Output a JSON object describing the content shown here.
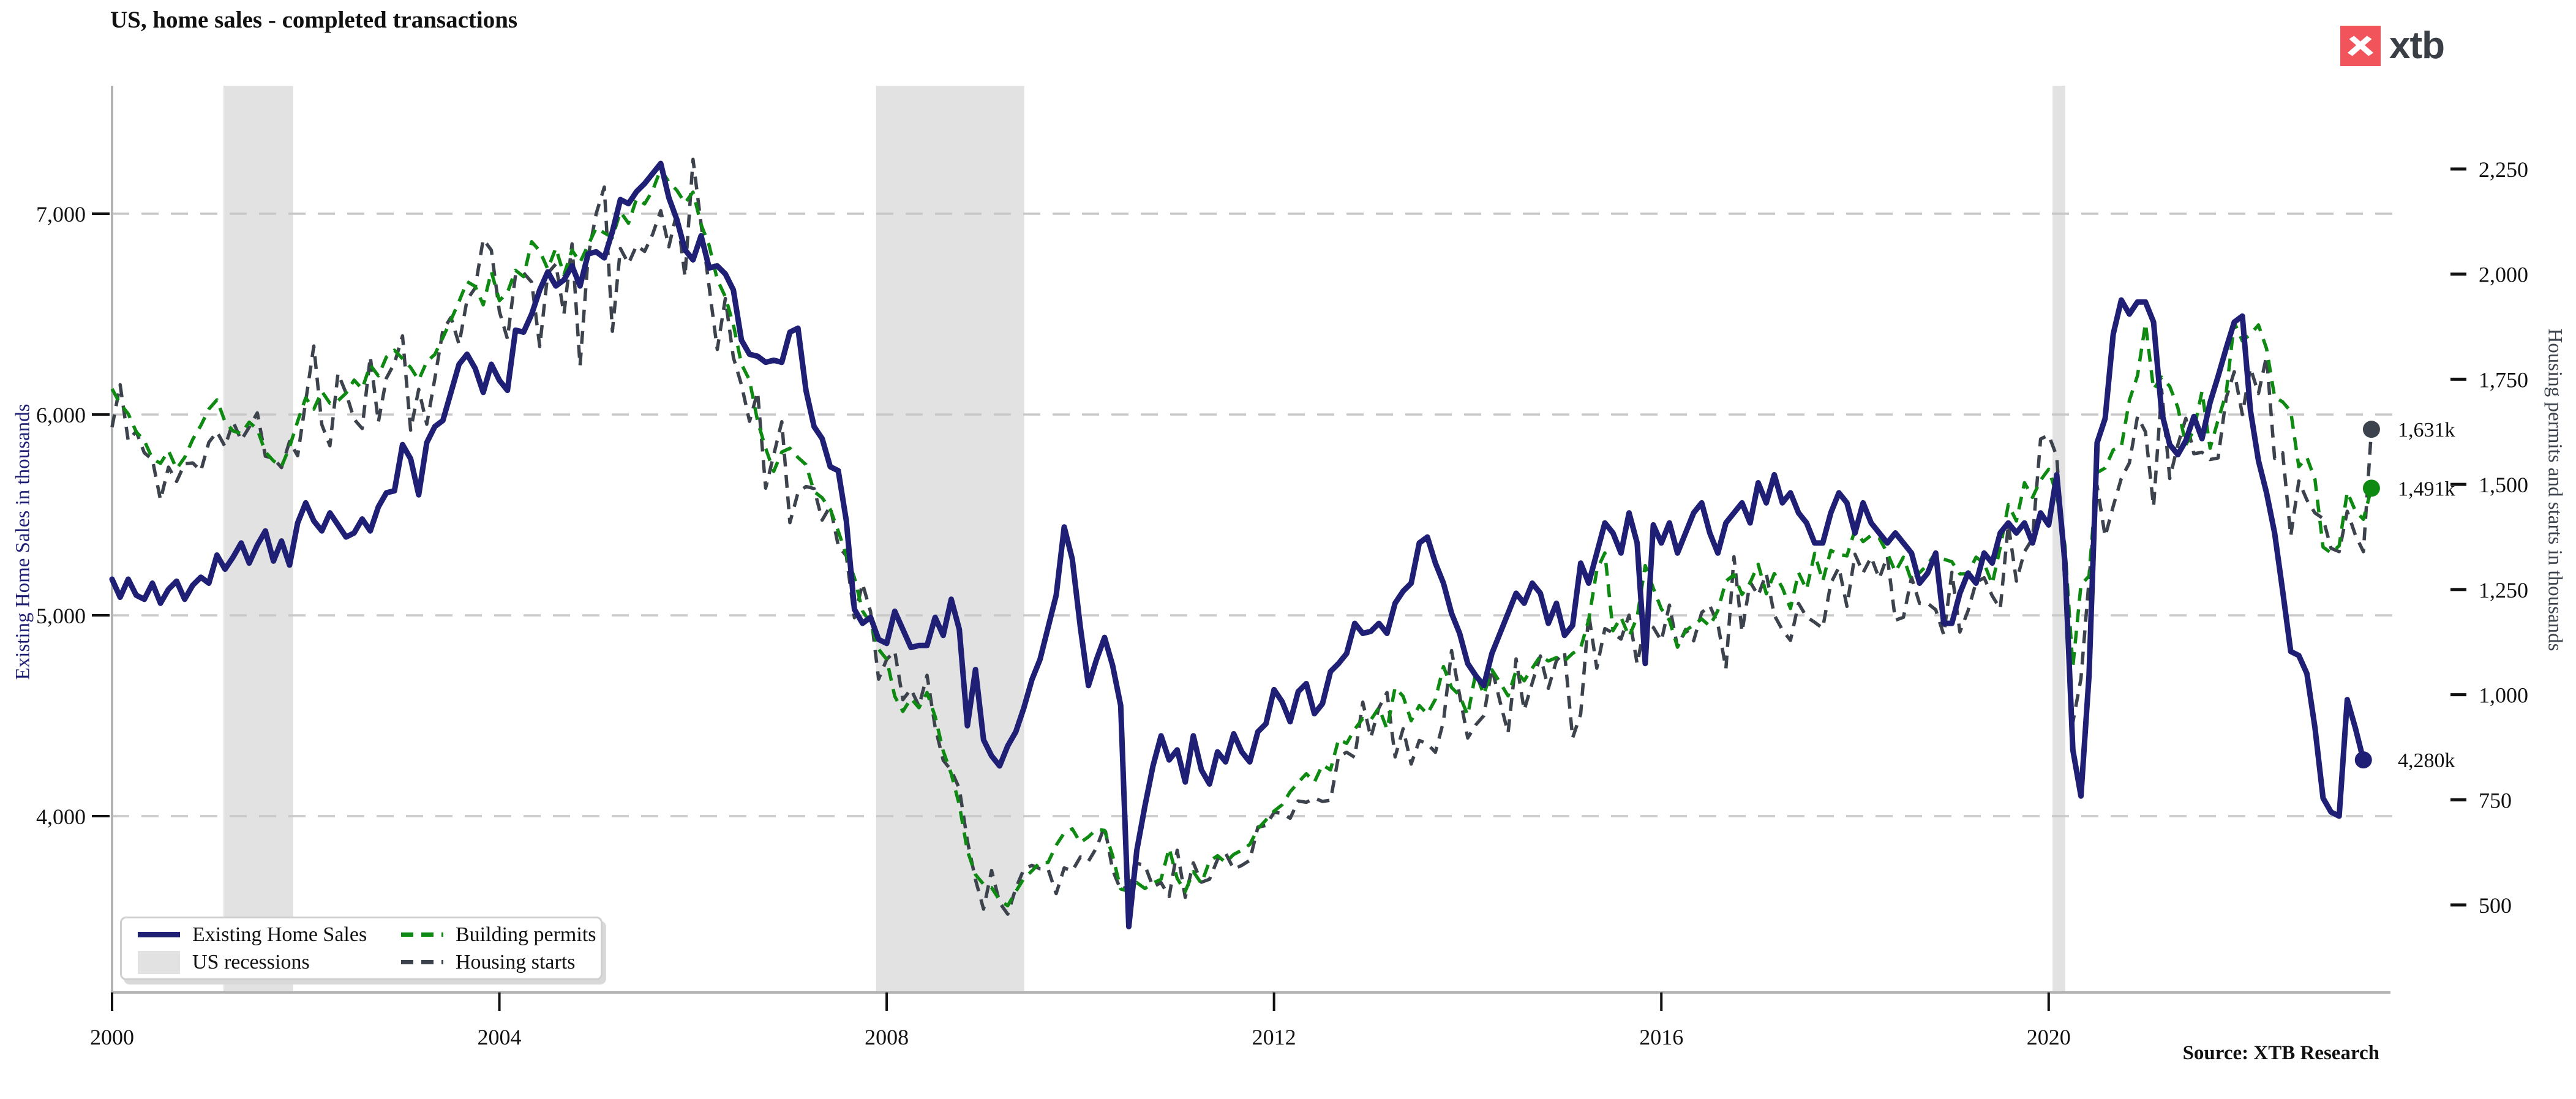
{
  "header": {
    "title": "US, home sales - completed transactions",
    "logo_text": "xtb"
  },
  "footer": {
    "source": "Source: XTB Research"
  },
  "legend": {
    "items": [
      {
        "label": "Existing Home Sales",
        "style": "solid-line",
        "color": "#1e1f75"
      },
      {
        "label": "US recessions",
        "style": "patch",
        "color": "#e2e2e2"
      },
      {
        "label": "Building permits",
        "style": "dashed-line",
        "color": "#0e8a12"
      },
      {
        "label": "Housing starts",
        "style": "dashed-line",
        "color": "#3d434d"
      }
    ]
  },
  "chart_data": {
    "type": "line",
    "title": "US, home sales - completed transactions",
    "x": {
      "start_year": 2000,
      "interval_months": 1,
      "tick_years": [
        2000,
        2004,
        2008,
        2012,
        2016,
        2020
      ]
    },
    "y_left": {
      "label": "Existing Home Sales in thousands",
      "ticks": [
        4000,
        5000,
        6000,
        7000
      ],
      "range_top_value": 7637,
      "range_bottom_value": 3122,
      "color": "#1e1f75"
    },
    "y_right": {
      "label": "Housing permits and starts in thousands",
      "ticks": [
        500,
        750,
        1000,
        1250,
        1500,
        1750,
        2000,
        2250
      ],
      "color": "#3d434d"
    },
    "grid": "horizontal-dashed",
    "colors": {
      "recession_band": "#e2e2e2",
      "gridline": "#c8c8c8",
      "spine": "#b3b3b3",
      "tick_text": "#111111",
      "logo_red": "#f2545b",
      "logo_gray": "#3a3e45"
    },
    "recessions": [
      {
        "start": 2001.15,
        "end": 2001.87
      },
      {
        "start": 2007.89,
        "end": 2009.42
      },
      {
        "start": 2020.04,
        "end": 2020.17
      }
    ],
    "series": [
      {
        "name": "Existing Home Sales",
        "axis": "left",
        "color": "#1e1f75",
        "style": "solid",
        "values": [
          5180,
          5090,
          5180,
          5100,
          5080,
          5160,
          5060,
          5130,
          5170,
          5080,
          5150,
          5190,
          5160,
          5300,
          5230,
          5290,
          5360,
          5260,
          5350,
          5420,
          5270,
          5370,
          5250,
          5460,
          5560,
          5470,
          5420,
          5510,
          5450,
          5390,
          5410,
          5480,
          5420,
          5540,
          5610,
          5620,
          5850,
          5780,
          5600,
          5860,
          5940,
          5970,
          6110,
          6250,
          6300,
          6230,
          6110,
          6250,
          6170,
          6120,
          6420,
          6410,
          6500,
          6620,
          6710,
          6640,
          6670,
          6740,
          6640,
          6800,
          6810,
          6780,
          6910,
          7070,
          7050,
          7110,
          7150,
          7200,
          7250,
          7080,
          6970,
          6820,
          6770,
          6890,
          6730,
          6740,
          6700,
          6620,
          6370,
          6300,
          6290,
          6260,
          6270,
          6260,
          6410,
          6430,
          6120,
          5940,
          5880,
          5740,
          5720,
          5470,
          5030,
          4960,
          4990,
          4880,
          4860,
          5020,
          4930,
          4840,
          4850,
          4850,
          4990,
          4900,
          5080,
          4930,
          4450,
          4730,
          4380,
          4300,
          4250,
          4350,
          4420,
          4540,
          4680,
          4780,
          4940,
          5100,
          5440,
          5280,
          4940,
          4650,
          4780,
          4890,
          4750,
          4550,
          3450,
          3830,
          4050,
          4250,
          4400,
          4280,
          4330,
          4170,
          4400,
          4230,
          4160,
          4320,
          4270,
          4410,
          4320,
          4270,
          4420,
          4460,
          4630,
          4570,
          4470,
          4620,
          4660,
          4510,
          4560,
          4720,
          4760,
          4810,
          4960,
          4910,
          4920,
          4960,
          4910,
          5060,
          5120,
          5160,
          5360,
          5390,
          5260,
          5160,
          5010,
          4910,
          4760,
          4700,
          4650,
          4810,
          4910,
          5010,
          5110,
          5060,
          5160,
          5110,
          4960,
          5060,
          4900,
          4950,
          5260,
          5160,
          5310,
          5460,
          5410,
          5310,
          5510,
          5360,
          4760,
          5450,
          5360,
          5460,
          5310,
          5410,
          5510,
          5560,
          5410,
          5310,
          5460,
          5510,
          5560,
          5460,
          5660,
          5560,
          5700,
          5560,
          5610,
          5510,
          5460,
          5360,
          5360,
          5510,
          5610,
          5560,
          5410,
          5560,
          5460,
          5410,
          5360,
          5410,
          5360,
          5310,
          5160,
          5210,
          5310,
          4960,
          4960,
          5110,
          5210,
          5160,
          5310,
          5260,
          5410,
          5460,
          5410,
          5460,
          5360,
          5510,
          5450,
          5700,
          5270,
          4330,
          4100,
          4700,
          5860,
          5980,
          6400,
          6570,
          6500,
          6560,
          6560,
          6460,
          6010,
          5850,
          5800,
          5870,
          5990,
          5880,
          6060,
          6190,
          6330,
          6460,
          6490,
          6020,
          5770,
          5610,
          5410,
          5120,
          4820,
          4800,
          4710,
          4440,
          4090,
          4020,
          4000,
          4580,
          4440,
          4280
        ]
      },
      {
        "name": "Building permits",
        "axis": "right",
        "color": "#0e8a12",
        "style": "dashed",
        "values": [
          1727,
          1692,
          1668,
          1625,
          1604,
          1561,
          1550,
          1580,
          1537,
          1564,
          1607,
          1640,
          1679,
          1701,
          1649,
          1627,
          1621,
          1648,
          1631,
          1577,
          1556,
          1542,
          1589,
          1650,
          1706,
          1679,
          1721,
          1693,
          1699,
          1717,
          1748,
          1727,
          1784,
          1758,
          1803,
          1819,
          1799,
          1778,
          1748,
          1792,
          1809,
          1849,
          1891,
          1935,
          1982,
          1971,
          1927,
          2006,
          1937,
          1956,
          2009,
          1994,
          2077,
          2055,
          2012,
          2062,
          1998,
          2057,
          2028,
          2069,
          2110,
          2098,
          2087,
          2148,
          2121,
          2179,
          2167,
          2199,
          2250,
          2219,
          2199,
          2169,
          2195,
          2118,
          2068,
          1987,
          1946,
          1880,
          1786,
          1748,
          1650,
          1586,
          1531,
          1577,
          1586,
          1564,
          1547,
          1483,
          1468,
          1441,
          1389,
          1331,
          1278,
          1199,
          1170,
          1108,
          1084,
          996,
          960,
          991,
          969,
          1005,
          948,
          866,
          812,
          738,
          629,
          572,
          549,
          541,
          511,
          498,
          532,
          563,
          581,
          601,
          601,
          642,
          671,
          681,
          648,
          662,
          680,
          677,
          617,
          538,
          532,
          553,
          539,
          552,
          561,
          635,
          563,
          532,
          579,
          551,
          604,
          617,
          601,
          620,
          630,
          644,
          681,
          702,
          723,
          738,
          769,
          791,
          812,
          792,
          833,
          821,
          894,
          884,
          918,
          943,
          940,
          969,
          918,
          1017,
          996,
          938,
          974,
          954,
          989,
          1067,
          1017,
          998,
          951,
          1052,
          1000,
          1059,
          1029,
          997,
          1057,
          1033,
          1063,
          1092,
          1080,
          1088,
          1080,
          1098,
          1111,
          1178,
          1296,
          1337,
          1152,
          1184,
          1138,
          1184,
          1307,
          1253,
          1204,
          1177,
          1113,
          1152,
          1166,
          1180,
          1163,
          1200,
          1270,
          1285,
          1238,
          1266,
          1310,
          1240,
          1288,
          1254,
          1205,
          1290,
          1250,
          1336,
          1270,
          1343,
          1333,
          1330,
          1392,
          1364,
          1379,
          1372,
          1337,
          1292,
          1327,
          1270,
          1290,
          1309,
          1338,
          1322,
          1316,
          1287,
          1288,
          1327,
          1312,
          1263,
          1350,
          1452,
          1413,
          1504,
          1469,
          1510,
          1536,
          1475,
          1356,
          1066,
          1261,
          1282,
          1528,
          1539,
          1582,
          1589,
          1700,
          1758,
          1883,
          1726,
          1755,
          1733,
          1683,
          1594,
          1630,
          1721,
          1586,
          1653,
          1717,
          1885,
          1841,
          1857,
          1879,
          1823,
          1708,
          1696,
          1674,
          1542,
          1564,
          1512,
          1351,
          1337,
          1354,
          1482,
          1437,
          1417,
          1491
        ]
      },
      {
        "name": "Housing starts",
        "axis": "right",
        "color": "#3d434d",
        "style": "dashed",
        "values": [
          1636,
          1737,
          1604,
          1626,
          1575,
          1559,
          1463,
          1541,
          1507,
          1549,
          1551,
          1532,
          1600,
          1625,
          1590,
          1649,
          1605,
          1636,
          1670,
          1567,
          1562,
          1540,
          1602,
          1568,
          1698,
          1829,
          1642,
          1592,
          1764,
          1717,
          1655,
          1633,
          1804,
          1648,
          1753,
          1788,
          1853,
          1629,
          1726,
          1643,
          1751,
          1867,
          1897,
          1833,
          1939,
          1967,
          2083,
          2057,
          1911,
          1846,
          1998,
          2003,
          1981,
          1828,
          2002,
          2024,
          1905,
          2072,
          1782,
          2042,
          2144,
          2207,
          1864,
          2061,
          2025,
          2068,
          2054,
          2095,
          2151,
          2065,
          2147,
          1994,
          2273,
          2119,
          1969,
          1821,
          1942,
          1802,
          1737,
          1650,
          1720,
          1491,
          1570,
          1649,
          1409,
          1480,
          1495,
          1490,
          1415,
          1448,
          1354,
          1330,
          1183,
          1264,
          1197,
          1037,
          1084,
          1103,
          988,
          1013,
          973,
          1046,
          923,
          844,
          820,
          777,
          652,
          560,
          490,
          582,
          505,
          478,
          540,
          585,
          594,
          586,
          585,
          527,
          588,
          581,
          614,
          604,
          636,
          687,
          583,
          536,
          546,
          599,
          594,
          543,
          553,
          520,
          630,
          518,
          600,
          554,
          561,
          608,
          623,
          585,
          594,
          606,
          685,
          689,
          720,
          718,
          706,
          747,
          744,
          754,
          746,
          749,
          854,
          863,
          851,
          982,
          898,
          969,
          1005,
          852,
          919,
          835,
          891,
          883,
          863,
          936,
          1105,
          999,
          897,
          928,
          950,
          1063,
          984,
          909,
          1085,
          963,
          1028,
          1092,
          1015,
          1081,
          1101,
          897,
          954,
          1192,
          1063,
          1157,
          1147,
          1132,
          1189,
          1073,
          1171,
          1160,
          1128,
          1213,
          1113,
          1155,
          1128,
          1195,
          1212,
          1168,
          1062,
          1328,
          1149,
          1268,
          1236,
          1288,
          1189,
          1154,
          1129,
          1217,
          1185,
          1172,
          1158,
          1265,
          1303,
          1210,
          1334,
          1290,
          1327,
          1276,
          1329,
          1177,
          1184,
          1279,
          1217,
          1217,
          1202,
          1142,
          1291,
          1149,
          1199,
          1267,
          1278,
          1235,
          1204,
          1405,
          1270,
          1340,
          1371,
          1608,
          1617,
          1567,
          1269,
          934,
          1038,
          1273,
          1497,
          1376,
          1448,
          1514,
          1551,
          1661,
          1625,
          1447,
          1725,
          1514,
          1594,
          1657,
          1573,
          1576,
          1559,
          1563,
          1706,
          1768,
          1666,
          1777,
          1716,
          1805,
          1562,
          1575,
          1377,
          1508,
          1463,
          1432,
          1419,
          1348,
          1340,
          1436,
          1380,
          1340,
          1631
        ]
      }
    ],
    "annotations": [
      {
        "label": "1,631k",
        "value": 1631,
        "axis": "right",
        "series": "Housing starts",
        "color": "#3d434d"
      },
      {
        "label": "1,491k",
        "value": 1491,
        "axis": "right",
        "series": "Building permits",
        "color": "#0e8a12"
      },
      {
        "label": "4,280k",
        "value": 4280,
        "axis": "left",
        "series": "Existing Home Sales",
        "color": "#1e1f75"
      }
    ],
    "legend_position": "bottom-left-inside"
  }
}
